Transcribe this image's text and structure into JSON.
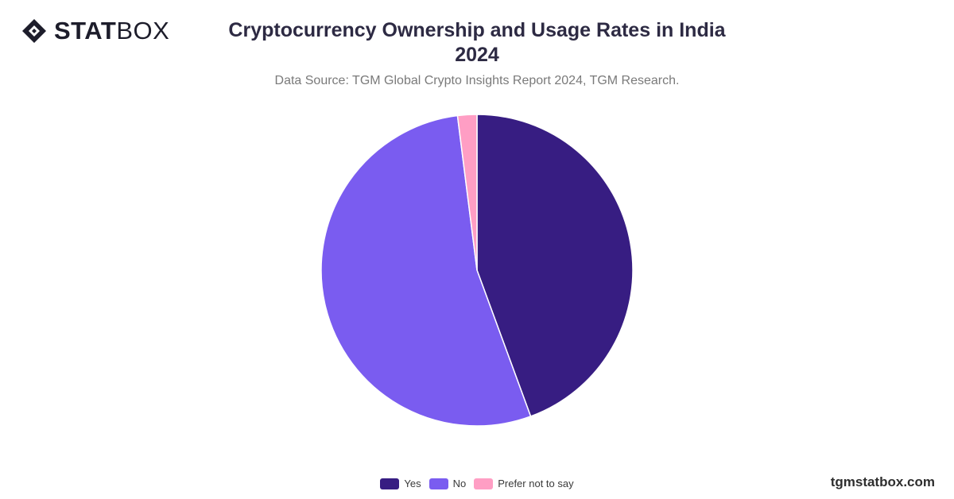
{
  "brand": {
    "logo_strong": "STAT",
    "logo_light": "BOX",
    "website": "tgmstatbox.com"
  },
  "header": {
    "title_line_1": "Cryptocurrency Ownership and Usage Rates in India",
    "title_line_2": "2024",
    "subtitle": "Data Source: TGM Global Crypto Insights Report 2024, TGM Research."
  },
  "chart_data": {
    "type": "pie",
    "title": "Cryptocurrency Ownership and Usage Rates in India 2024",
    "subtitle": "Data Source: TGM Global Crypto Insights Report 2024, TGM Research.",
    "categories": [
      "Yes",
      "No",
      "Prefer not to say"
    ],
    "values": [
      44.4,
      53.6,
      2.0
    ],
    "colors": [
      "#371d82",
      "#7a5cf0",
      "#ff9ec4"
    ],
    "legend_position": "bottom-center",
    "start_angle_deg": 0,
    "direction": "clockwise"
  }
}
